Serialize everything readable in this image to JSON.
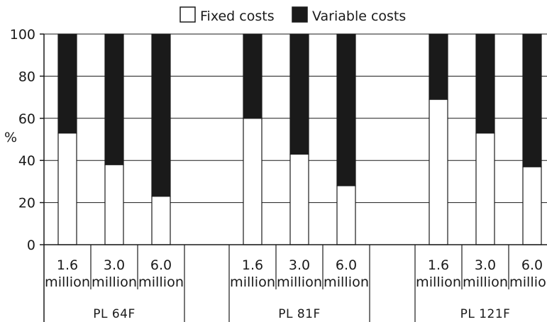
{
  "chart_data": {
    "type": "bar",
    "stacked": true,
    "percent": true,
    "ylabel": "%",
    "ylim": [
      0,
      100
    ],
    "yticks": [
      0,
      20,
      40,
      60,
      80,
      100
    ],
    "grid": true,
    "legend_position": "top",
    "series": [
      {
        "name": "Fixed costs",
        "color": "#ffffff",
        "values": [
          53,
          38,
          23,
          60,
          43,
          28,
          69,
          53,
          37
        ]
      },
      {
        "name": "Variable costs",
        "color": "#1a1a1a",
        "values": [
          47,
          62,
          77,
          40,
          57,
          72,
          31,
          47,
          63
        ]
      }
    ],
    "groups": [
      {
        "name": "PL 64F",
        "categories": [
          {
            "top": "1.6",
            "bottom": "million"
          },
          {
            "top": "3.0",
            "bottom": "million"
          },
          {
            "top": "6.0",
            "bottom": "million"
          }
        ]
      },
      {
        "name": "PL 81F",
        "categories": [
          {
            "top": "1.6",
            "bottom": "million"
          },
          {
            "top": "3.0",
            "bottom": "million"
          },
          {
            "top": "6.0",
            "bottom": "million"
          }
        ]
      },
      {
        "name": "PL 121F",
        "categories": [
          {
            "top": "1.6",
            "bottom": "million"
          },
          {
            "top": "3.0",
            "bottom": "million"
          },
          {
            "top": "6.0",
            "bottom": "million"
          }
        ]
      }
    ]
  }
}
